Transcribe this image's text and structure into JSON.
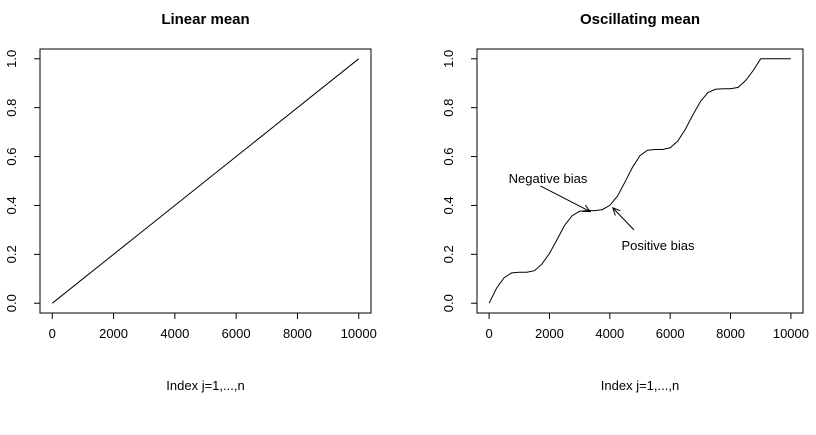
{
  "chart_data": [
    {
      "type": "line",
      "title": "Linear mean",
      "xlabel": "Index j=1,...,n",
      "ylabel": "",
      "xlim": [
        -400,
        10400
      ],
      "ylim": [
        -0.04,
        1.04
      ],
      "xticks": [
        0,
        2000,
        4000,
        6000,
        8000,
        10000
      ],
      "yticks": [
        0.0,
        0.2,
        0.4,
        0.6,
        0.8,
        1.0
      ],
      "xtick_labels": [
        "0",
        "2000",
        "4000",
        "6000",
        "8000",
        "10000"
      ],
      "ytick_labels": [
        "0.0",
        "0.2",
        "0.4",
        "0.6",
        "0.8",
        "1.0"
      ],
      "grid": false,
      "series": [
        {
          "x": [
            0,
            10000
          ],
          "y": [
            0.0,
            1.0
          ]
        }
      ],
      "annotations": []
    },
    {
      "type": "line",
      "title": "Oscillating mean",
      "xlabel": "Index j=1,...,n",
      "ylabel": "",
      "xlim": [
        -400,
        10400
      ],
      "ylim": [
        -0.04,
        1.04
      ],
      "xticks": [
        0,
        2000,
        4000,
        6000,
        8000,
        10000
      ],
      "yticks": [
        0.0,
        0.2,
        0.4,
        0.6,
        0.8,
        1.0
      ],
      "xtick_labels": [
        "0",
        "2000",
        "4000",
        "6000",
        "8000",
        "10000"
      ],
      "ytick_labels": [
        "0.0",
        "0.2",
        "0.4",
        "0.6",
        "0.8",
        "1.0"
      ],
      "grid": false,
      "series": [
        {
          "x": [
            0,
            250,
            500,
            750,
            1000,
            1250,
            1500,
            1750,
            2000,
            2250,
            2500,
            2750,
            3000,
            3250,
            3500,
            3750,
            4000,
            4250,
            4500,
            4750,
            5000,
            5250,
            5500,
            5750,
            6000,
            6250,
            6500,
            6750,
            7000,
            7250,
            7500,
            7750,
            8000,
            8250,
            8500,
            8750,
            9000,
            9250,
            9500,
            9750,
            10000
          ],
          "y": [
            0.0,
            0.062,
            0.105,
            0.124,
            0.127,
            0.127,
            0.133,
            0.16,
            0.203,
            0.26,
            0.318,
            0.358,
            0.376,
            0.379,
            0.379,
            0.383,
            0.4,
            0.438,
            0.495,
            0.556,
            0.604,
            0.626,
            0.629,
            0.629,
            0.636,
            0.663,
            0.711,
            0.77,
            0.825,
            0.862,
            0.875,
            0.877,
            0.877,
            0.883,
            0.911,
            0.952,
            1.0,
            1.0,
            1.0,
            1.0,
            1.0
          ]
        }
      ],
      "annotations": [
        {
          "text": "Negative bias",
          "from": [
            1700,
            0.48
          ],
          "to": [
            3350,
            0.375
          ]
        },
        {
          "text": "Positive bias",
          "from": [
            4800,
            0.3
          ],
          "to": [
            4100,
            0.39
          ]
        }
      ]
    }
  ]
}
